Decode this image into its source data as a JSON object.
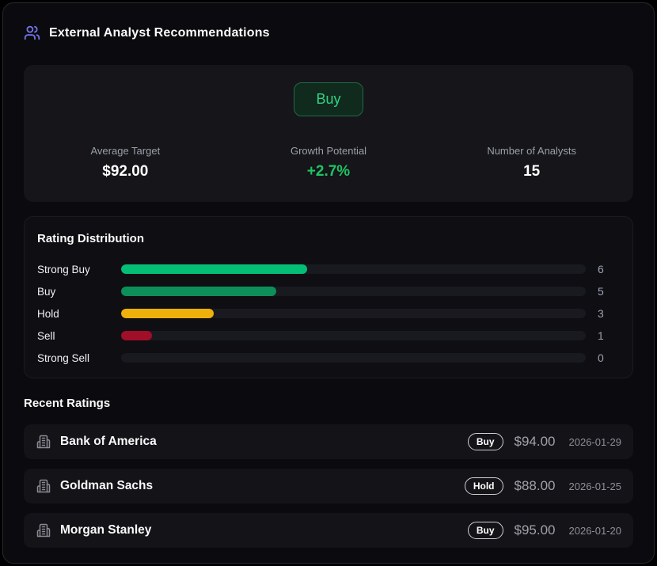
{
  "header": {
    "title": "External Analyst Recommendations",
    "icon": "users-icon",
    "icon_color": "#7477ee"
  },
  "summary": {
    "consensus_label": "Buy",
    "consensus_color": "#33d186",
    "stats": [
      {
        "label": "Average Target",
        "value": "$92.00",
        "color": "#ffffff"
      },
      {
        "label": "Growth Potential",
        "value": "+2.7%",
        "color": "#1fc563"
      },
      {
        "label": "Number of Analysts",
        "value": "15",
        "color": "#ffffff"
      }
    ]
  },
  "distribution": {
    "title": "Rating Distribution",
    "total": 15,
    "rows": [
      {
        "label": "Strong Buy",
        "count": 6,
        "color": "#04be76"
      },
      {
        "label": "Buy",
        "count": 5,
        "color": "#0d8f5a"
      },
      {
        "label": "Hold",
        "count": 3,
        "color": "#eeb00a"
      },
      {
        "label": "Sell",
        "count": 1,
        "color": "#a10e28"
      },
      {
        "label": "Strong Sell",
        "count": 0,
        "color": "#04be76"
      }
    ]
  },
  "recent": {
    "title": "Recent Ratings",
    "items": [
      {
        "firm": "Bank of America",
        "rating": "Buy",
        "target": "$94.00",
        "date": "2026-01-29"
      },
      {
        "firm": "Goldman Sachs",
        "rating": "Hold",
        "target": "$88.00",
        "date": "2026-01-25"
      },
      {
        "firm": "Morgan Stanley",
        "rating": "Buy",
        "target": "$95.00",
        "date": "2026-01-20"
      }
    ]
  }
}
